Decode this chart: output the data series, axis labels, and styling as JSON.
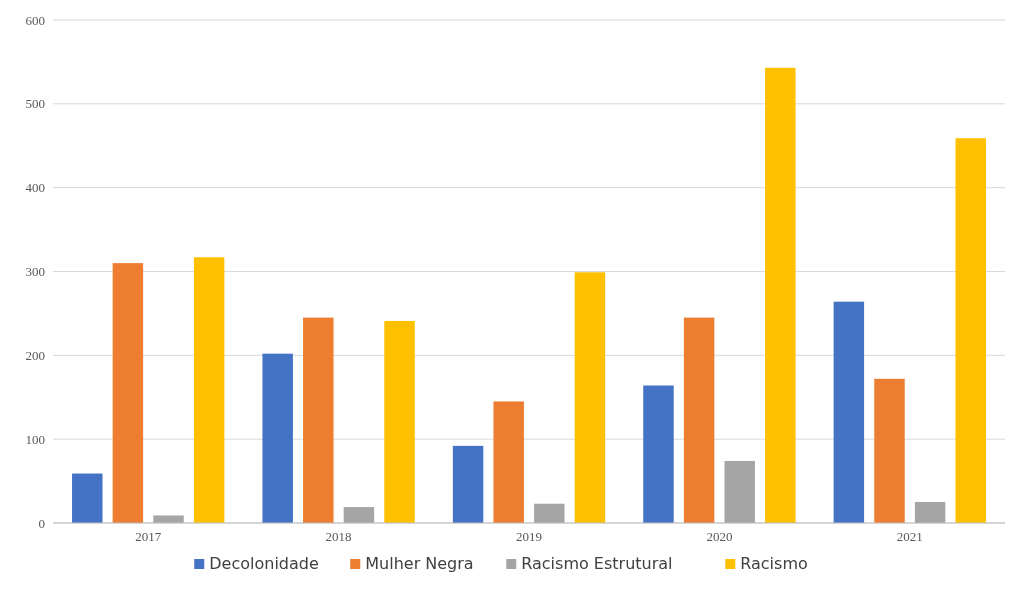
{
  "chart_data": {
    "type": "bar",
    "categories": [
      "2017",
      "2018",
      "2019",
      "2020",
      "2021"
    ],
    "series": [
      {
        "name": "Decolonidade",
        "color": "#4472c4",
        "values": [
          59,
          202,
          92,
          164,
          264
        ]
      },
      {
        "name": "Mulher Negra",
        "color": "#ed7d31",
        "values": [
          310,
          245,
          145,
          245,
          172
        ]
      },
      {
        "name": "Racismo Estrutural",
        "color": "#a5a5a5",
        "values": [
          9,
          19,
          23,
          74,
          25
        ]
      },
      {
        "name": "Racismo",
        "color": "#ffc000",
        "values": [
          317,
          241,
          299,
          543,
          459
        ]
      }
    ],
    "ylim": [
      0,
      600
    ],
    "yticks": [
      0,
      100,
      200,
      300,
      400,
      500,
      600
    ],
    "grid": "y",
    "legend": "bottom"
  }
}
